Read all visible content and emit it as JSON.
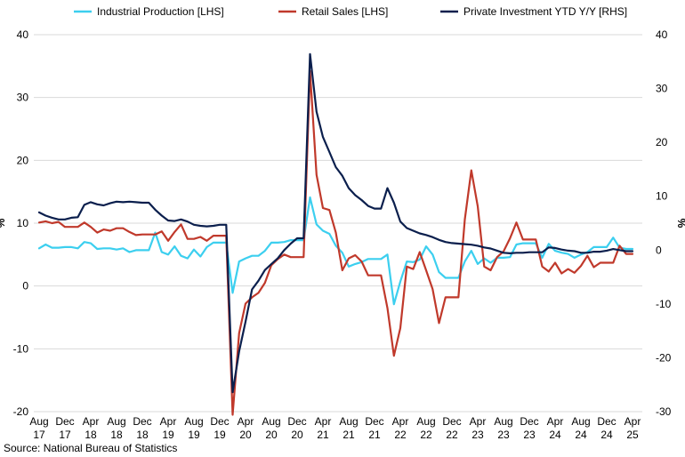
{
  "chart_data": {
    "type": "line",
    "title": "",
    "source": "Source: National Bureau of Statistics",
    "left_axis": {
      "unit": "%",
      "ylim": [
        -20,
        40
      ],
      "ticks": [
        "40",
        "30",
        "20",
        "10",
        "0",
        "-10",
        "-20"
      ]
    },
    "right_axis": {
      "unit": "%",
      "ylim": [
        -30,
        40
      ],
      "ticks": [
        "40",
        "30",
        "20",
        "10",
        "0",
        "-10",
        "-20",
        "-30"
      ]
    },
    "x_ticks": [
      {
        "month": "Aug",
        "year": "17"
      },
      {
        "month": "Dec",
        "year": "17"
      },
      {
        "month": "Apr",
        "year": "18"
      },
      {
        "month": "Aug",
        "year": "18"
      },
      {
        "month": "Dec",
        "year": "18"
      },
      {
        "month": "Apr",
        "year": "19"
      },
      {
        "month": "Aug",
        "year": "19"
      },
      {
        "month": "Dec",
        "year": "19"
      },
      {
        "month": "Apr",
        "year": "20"
      },
      {
        "month": "Aug",
        "year": "20"
      },
      {
        "month": "Dec",
        "year": "20"
      },
      {
        "month": "Apr",
        "year": "21"
      },
      {
        "month": "Aug",
        "year": "21"
      },
      {
        "month": "Dec",
        "year": "21"
      },
      {
        "month": "Apr",
        "year": "22"
      },
      {
        "month": "Aug",
        "year": "22"
      },
      {
        "month": "Dec",
        "year": "22"
      },
      {
        "month": "Apr",
        "year": "23"
      },
      {
        "month": "Aug",
        "year": "23"
      },
      {
        "month": "Dec",
        "year": "23"
      },
      {
        "month": "Apr",
        "year": "24"
      },
      {
        "month": "Aug",
        "year": "24"
      },
      {
        "month": "Dec",
        "year": "24"
      },
      {
        "month": "Apr",
        "year": "25"
      }
    ],
    "x_start": "2017-08",
    "series": [
      {
        "name": "Industrial Production [LHS]",
        "axis": "left",
        "color": "#3ccfef",
        "values": [
          6.0,
          6.6,
          6.1,
          6.1,
          6.2,
          6.2,
          6.0,
          7.0,
          6.8,
          5.9,
          6.0,
          6.0,
          5.8,
          6.0,
          5.4,
          5.7,
          5.7,
          5.7,
          8.5,
          5.4,
          5.0,
          6.3,
          4.8,
          4.4,
          5.8,
          4.7,
          6.2,
          6.9,
          6.9,
          6.9,
          -1.1,
          3.9,
          4.4,
          4.8,
          4.8,
          5.6,
          6.9,
          6.9,
          7.0,
          7.3,
          7.3,
          7.3,
          14.1,
          9.8,
          8.8,
          8.3,
          6.4,
          5.3,
          3.1,
          3.5,
          3.8,
          4.3,
          4.3,
          4.3,
          5.0,
          -2.9,
          0.7,
          3.9,
          3.8,
          4.2,
          6.3,
          5.0,
          2.2,
          1.3,
          1.3,
          1.3,
          3.9,
          5.6,
          3.5,
          4.4,
          3.7,
          4.5,
          4.5,
          4.6,
          6.6,
          6.8,
          6.8,
          6.8,
          4.5,
          6.7,
          5.6,
          5.3,
          5.1,
          4.5,
          5.0,
          5.4,
          6.2,
          6.2,
          6.2,
          7.7,
          6.1,
          5.9,
          5.9
        ]
      },
      {
        "name": "Retail Sales [LHS]",
        "axis": "left",
        "color": "#c0392b",
        "values": [
          10.1,
          10.3,
          10.0,
          10.2,
          9.4,
          9.4,
          9.4,
          10.1,
          9.4,
          8.5,
          9.0,
          8.8,
          9.2,
          9.2,
          8.6,
          8.1,
          8.2,
          8.2,
          8.2,
          8.7,
          7.2,
          8.6,
          9.8,
          7.5,
          7.5,
          7.8,
          7.2,
          8.0,
          8.0,
          8.0,
          -20.5,
          -7.5,
          -2.8,
          -1.8,
          -1.1,
          0.5,
          3.3,
          4.3,
          5.0,
          4.6,
          4.6,
          4.6,
          34.2,
          17.7,
          12.4,
          12.1,
          8.5,
          2.5,
          4.4,
          4.9,
          3.9,
          1.7,
          1.7,
          1.7,
          -3.5,
          -11.1,
          -6.7,
          3.1,
          2.7,
          5.4,
          2.5,
          -0.5,
          -5.9,
          -1.8,
          -1.8,
          -1.8,
          10.6,
          18.4,
          12.7,
          3.1,
          2.5,
          4.6,
          5.5,
          7.6,
          10.1,
          7.4,
          7.4,
          7.4,
          3.1,
          2.3,
          3.7,
          2.0,
          2.7,
          2.1,
          3.2,
          4.8,
          3.0,
          3.7,
          3.7,
          3.7,
          6.4,
          5.1,
          5.1
        ]
      },
      {
        "name": "Private Investment YTD Y/Y [RHS]",
        "axis": "right",
        "color": "#0b1f4d",
        "values": [
          7.0,
          6.4,
          6.0,
          5.7,
          5.7,
          6.0,
          6.1,
          8.4,
          8.9,
          8.5,
          8.3,
          8.7,
          9.0,
          8.9,
          9.0,
          8.9,
          8.8,
          8.8,
          7.5,
          6.4,
          5.5,
          5.4,
          5.7,
          5.3,
          4.7,
          4.5,
          4.4,
          4.5,
          4.7,
          4.7,
          -26.4,
          -18.8,
          -13.3,
          -7.3,
          -5.7,
          -3.7,
          -2.6,
          -1.5,
          0.0,
          1.2,
          2.2,
          2.2,
          36.4,
          25.7,
          21.0,
          18.2,
          15.4,
          13.8,
          11.5,
          10.2,
          9.3,
          8.2,
          7.7,
          7.7,
          11.5,
          8.8,
          5.3,
          4.1,
          3.6,
          3.1,
          2.8,
          2.4,
          1.9,
          1.5,
          1.3,
          1.2,
          1.1,
          1.0,
          0.8,
          0.5,
          0.3,
          -0.1,
          -0.5,
          -0.6,
          -0.5,
          -0.5,
          -0.4,
          -0.4,
          -0.4,
          0.5,
          0.4,
          0.1,
          -0.1,
          -0.2,
          -0.5,
          -0.5,
          -0.3,
          -0.3,
          -0.1,
          0.2,
          0.0,
          -0.2,
          -0.2
        ]
      }
    ]
  }
}
